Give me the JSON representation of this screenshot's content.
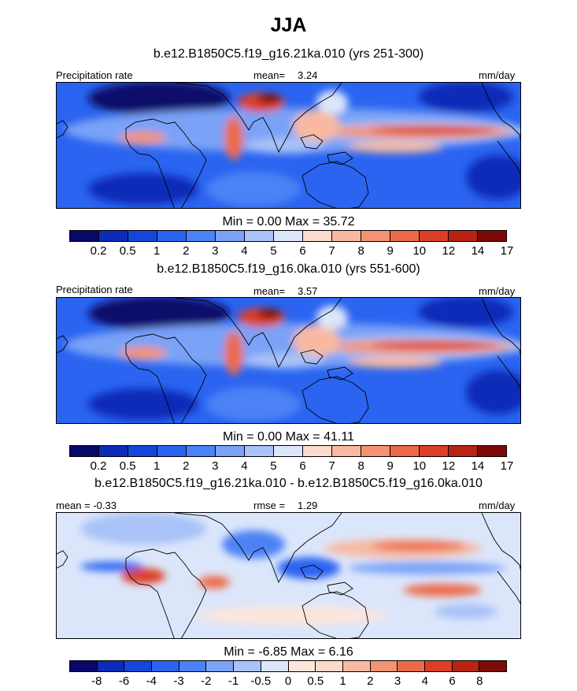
{
  "chart_data": {
    "type": "heatmap",
    "title": "JJA",
    "panels": [
      {
        "subtitle": "b.e12.B1850C5.f19_g16.21ka.010 (yrs 251-300)",
        "left_label": "Precipitation rate",
        "center_label": "mean=",
        "center_value": "3.24",
        "units": "mm/day",
        "min_max": "Min =   0.00 Max =  35.72",
        "colorbar_ticks": [
          "0.2",
          "0.5",
          "1",
          "2",
          "3",
          "4",
          "5",
          "6",
          "7",
          "8",
          "9",
          "10",
          "12",
          "14",
          "17"
        ]
      },
      {
        "subtitle": "b.e12.B1850C5.f19_g16.0ka.010 (yrs 551-600)",
        "left_label": "Precipitation rate",
        "center_label": "mean=",
        "center_value": "3.57",
        "units": "mm/day",
        "min_max": "Min =   0.00 Max =  41.11",
        "colorbar_ticks": [
          "0.2",
          "0.5",
          "1",
          "2",
          "3",
          "4",
          "5",
          "6",
          "7",
          "8",
          "9",
          "10",
          "12",
          "14",
          "17"
        ]
      },
      {
        "subtitle": "b.e12.B1850C5.f19_g16.21ka.010 - b.e12.B1850C5.f19_g16.0ka.010",
        "left_label": "mean =  -0.33",
        "center_label": "rmse =",
        "center_value": "1.29",
        "units": "mm/day",
        "min_max": "Min =  -6.85 Max =   6.16",
        "colorbar_ticks": [
          "-8",
          "-6",
          "-4",
          "-3",
          "-2",
          "-1",
          "-0.5",
          "0",
          "0.5",
          "1",
          "2",
          "3",
          "4",
          "6",
          "8"
        ]
      }
    ],
    "colors": {
      "abs_scale": [
        "#08086b",
        "#0b2bb8",
        "#1447d8",
        "#2a64f0",
        "#4b82f5",
        "#7aa2f7",
        "#a9c3f8",
        "#dce6fb",
        "#fbdccc",
        "#f8b9a0",
        "#f39373",
        "#ec6a4a",
        "#dc3f25",
        "#b82314",
        "#7d0a08"
      ],
      "diff_scale": [
        "#08086b",
        "#0b2bb8",
        "#1447d8",
        "#2a64f0",
        "#4b82f5",
        "#7aa2f7",
        "#a9c3f8",
        "#dce6fb",
        "#fbe6dc",
        "#fbdccc",
        "#f8b9a0",
        "#f39373",
        "#ec6a4a",
        "#dc3f25",
        "#b82314",
        "#7d0a08"
      ]
    }
  }
}
